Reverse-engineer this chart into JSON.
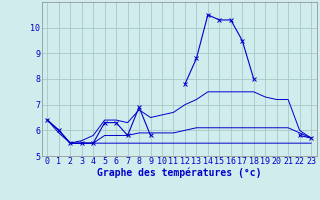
{
  "xlabel": "Graphe des températures (°c)",
  "background_color": "#d0ecec",
  "grid_color": "#a8c8c8",
  "line_color": "#0000cc",
  "hours": [
    0,
    1,
    2,
    3,
    4,
    5,
    6,
    7,
    8,
    9,
    10,
    11,
    12,
    13,
    14,
    15,
    16,
    17,
    18,
    19,
    20,
    21,
    22,
    23
  ],
  "temp_main": [
    6.4,
    6.0,
    5.5,
    5.5,
    5.5,
    6.3,
    6.3,
    5.8,
    6.9,
    5.8,
    null,
    null,
    7.8,
    8.8,
    10.5,
    10.3,
    10.3,
    9.5,
    8.0,
    null,
    null,
    null,
    5.8,
    5.7
  ],
  "temp_min": [
    6.4,
    5.9,
    5.5,
    5.5,
    5.5,
    5.5,
    5.5,
    5.5,
    5.5,
    5.5,
    5.5,
    5.5,
    5.5,
    5.5,
    5.5,
    5.5,
    5.5,
    5.5,
    5.5,
    5.5,
    5.5,
    5.5,
    5.5,
    5.5
  ],
  "temp_max": [
    6.4,
    6.0,
    5.5,
    5.6,
    5.8,
    6.4,
    6.4,
    6.3,
    6.8,
    6.5,
    6.6,
    6.7,
    7.0,
    7.2,
    7.5,
    7.5,
    7.5,
    7.5,
    7.5,
    7.3,
    7.2,
    7.2,
    6.0,
    5.7
  ],
  "temp_avg": [
    6.4,
    6.0,
    5.5,
    5.5,
    5.5,
    5.8,
    5.8,
    5.8,
    5.9,
    5.9,
    5.9,
    5.9,
    6.0,
    6.1,
    6.1,
    6.1,
    6.1,
    6.1,
    6.1,
    6.1,
    6.1,
    6.1,
    5.9,
    5.7
  ],
  "ylim": [
    5,
    11
  ],
  "yticks": [
    5,
    6,
    7,
    8,
    9,
    10
  ],
  "xlim": [
    -0.5,
    23.5
  ],
  "tick_fontsize": 6,
  "xlabel_fontsize": 7
}
